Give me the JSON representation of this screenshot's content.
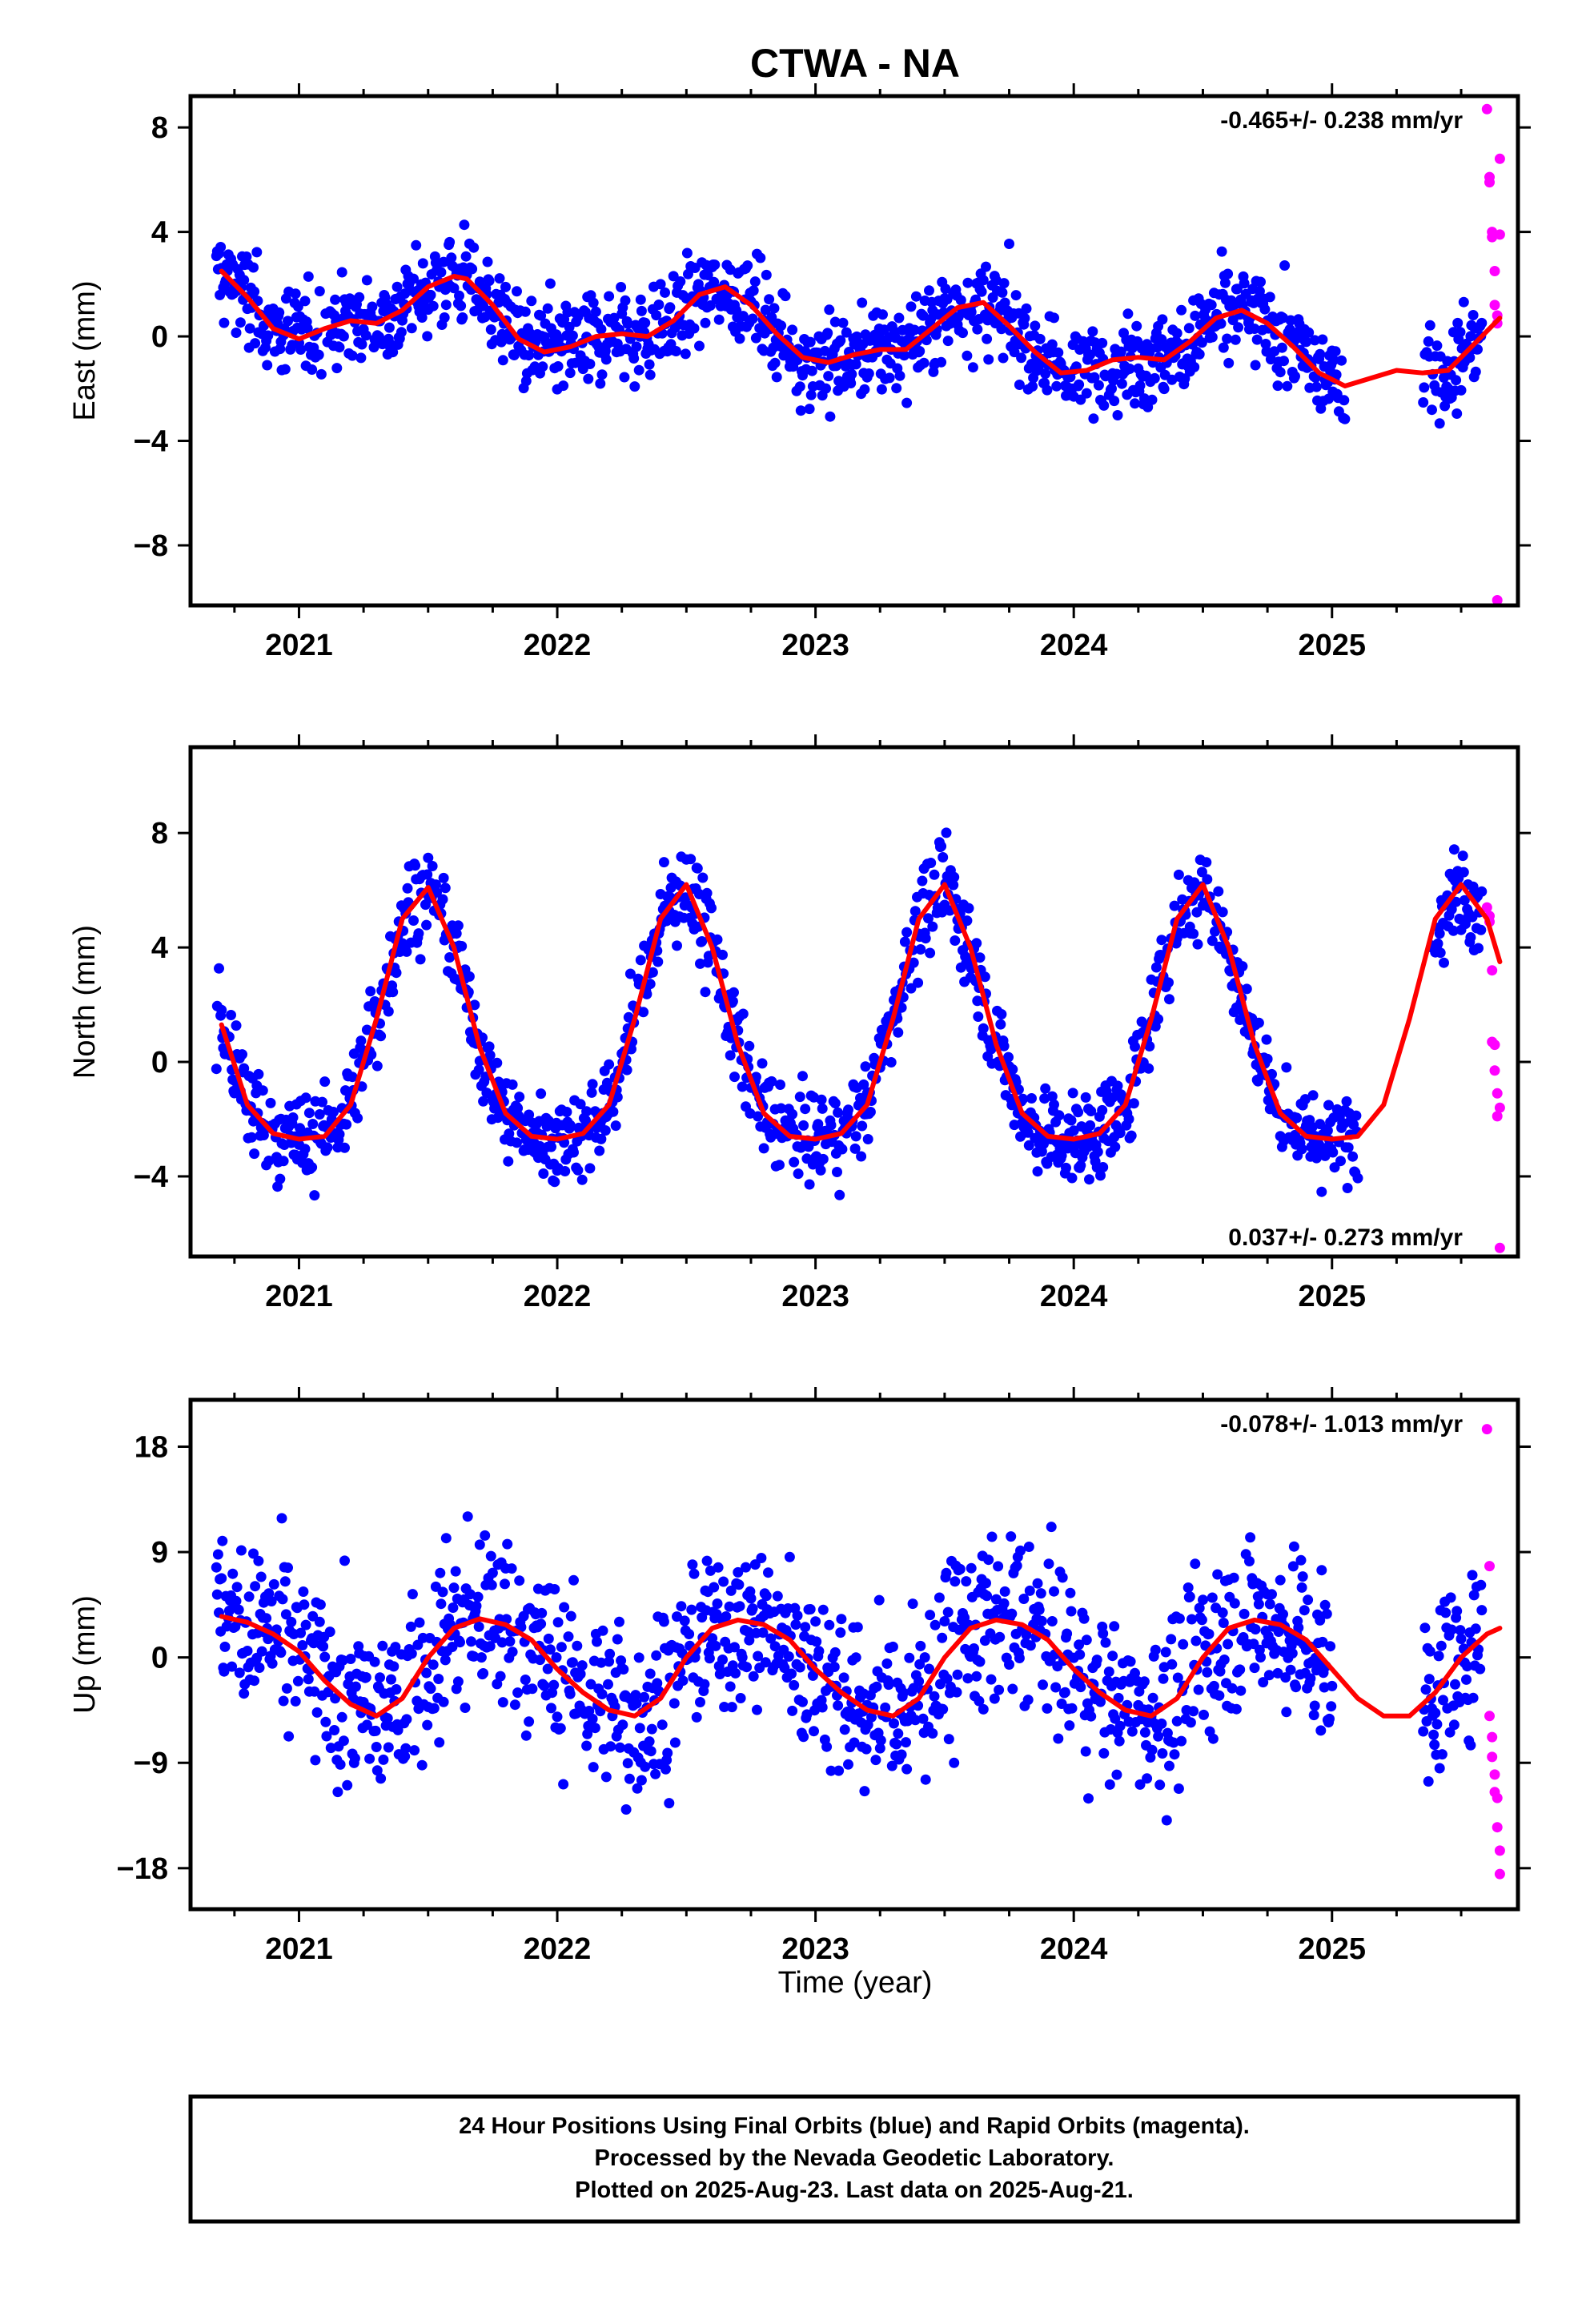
{
  "chart_data": {
    "type": "scatter",
    "title": "CTWA - NA",
    "xlabel": "Time (year)",
    "xlim": [
      2020.58,
      2025.72
    ],
    "x_ticks": [
      "2021",
      "2022",
      "2023",
      "2024",
      "2025"
    ],
    "grid": false,
    "colors": {
      "final": "#0000ff",
      "rapid": "#ff00ff",
      "model": "#ff0000",
      "frame": "#000000"
    },
    "panels": [
      {
        "ylabel": "East (mm)",
        "ylim": [
          -10.3,
          9.2
        ],
        "y_ticks": [
          "8",
          "4",
          "0",
          "−4",
          "−8"
        ],
        "rate": "-0.465+/- 0.238 mm/yr",
        "rate_position": "top-right",
        "model_curve": {
          "x": [
            2020.7,
            2020.8,
            2020.9,
            2021.0,
            2021.1,
            2021.2,
            2021.3,
            2021.4,
            2021.5,
            2021.6,
            2021.65,
            2021.75,
            2021.85,
            2021.95,
            2022.05,
            2022.15,
            2022.25,
            2022.35,
            2022.45,
            2022.55,
            2022.65,
            2022.75,
            2022.85,
            2022.95,
            2023.05,
            2023.15,
            2023.25,
            2023.35,
            2023.45,
            2023.55,
            2023.65,
            2023.75,
            2023.85,
            2023.95,
            2024.05,
            2024.15,
            2024.25,
            2024.35,
            2024.45,
            2024.55,
            2024.65,
            2024.75,
            2024.85,
            2024.95,
            2025.05,
            2025.15,
            2025.25,
            2025.35,
            2025.45,
            2025.55,
            2025.65
          ],
          "y": [
            2.5,
            1.5,
            0.3,
            -0.1,
            0.3,
            0.6,
            0.5,
            1.0,
            1.9,
            2.3,
            2.2,
            1.2,
            -0.1,
            -0.6,
            -0.4,
            0.0,
            0.1,
            0.0,
            0.6,
            1.6,
            1.9,
            1.2,
            0.1,
            -0.8,
            -1.0,
            -0.7,
            -0.5,
            -0.5,
            0.3,
            1.1,
            1.3,
            0.4,
            -0.6,
            -1.4,
            -1.3,
            -0.9,
            -0.8,
            -0.9,
            -0.2,
            0.7,
            1.0,
            0.5,
            -0.4,
            -1.4,
            -1.9,
            -1.6,
            -1.3,
            -1.4,
            -1.3,
            -0.3,
            0.7
          ]
        },
        "series_params": {
          "A": 1.3,
          "P": 0.62,
          "off": 1.1,
          "trend": -0.465,
          "noise": 1.05,
          "gap_start": 2025.05,
          "gap_end": 2025.35,
          "rapid_x": [
            2025.6,
            2025.61,
            2025.61,
            2025.62,
            2025.62,
            2025.63,
            2025.63,
            2025.64,
            2025.64,
            2025.64,
            2025.65,
            2025.65
          ],
          "rapid_y": [
            8.7,
            5.9,
            6.1,
            4.0,
            3.8,
            2.5,
            1.2,
            0.8,
            0.5,
            -10.1,
            6.8,
            3.9
          ]
        }
      },
      {
        "ylabel": "North (mm)",
        "ylim": [
          -6.8,
          11.0
        ],
        "y_ticks": [
          "8",
          "4",
          "0",
          "−4"
        ],
        "rate": "0.037+/- 0.273 mm/yr",
        "rate_position": "bottom-right",
        "model_curve": {
          "x": [
            2020.7,
            2020.8,
            2020.9,
            2021.0,
            2021.1,
            2021.2,
            2021.3,
            2021.4,
            2021.5,
            2021.6,
            2021.7,
            2021.8,
            2021.9,
            2022.0,
            2022.1,
            2022.2,
            2022.3,
            2022.4,
            2022.5,
            2022.6,
            2022.7,
            2022.8,
            2022.9,
            2023.0,
            2023.1,
            2023.2,
            2023.3,
            2023.4,
            2023.5,
            2023.6,
            2023.7,
            2023.8,
            2023.9,
            2024.0,
            2024.1,
            2024.2,
            2024.3,
            2024.4,
            2024.5,
            2024.6,
            2024.7,
            2024.8,
            2024.9,
            2025.0,
            2025.1,
            2025.2,
            2025.3,
            2025.4,
            2025.5,
            2025.6,
            2025.65
          ],
          "y": [
            1.3,
            -1.5,
            -2.5,
            -2.7,
            -2.6,
            -1.5,
            1.5,
            5.0,
            6.1,
            4.0,
            0.5,
            -1.8,
            -2.6,
            -2.7,
            -2.5,
            -1.5,
            1.5,
            5.0,
            6.2,
            4.0,
            0.6,
            -1.8,
            -2.6,
            -2.7,
            -2.5,
            -1.5,
            1.5,
            5.0,
            6.2,
            4.0,
            0.6,
            -1.8,
            -2.6,
            -2.7,
            -2.5,
            -1.5,
            1.5,
            5.0,
            6.2,
            4.0,
            0.6,
            -1.8,
            -2.6,
            -2.7,
            -2.6,
            -1.5,
            1.5,
            5.0,
            6.2,
            5.0,
            3.5
          ]
        },
        "series_params": {
          "A": 4.4,
          "P": 0.13,
          "off": 1.8,
          "trend": 0.037,
          "noise": 0.95,
          "gap_start": 2025.1,
          "gap_end": 2025.38,
          "rapid_x": [
            2025.6,
            2025.61,
            2025.61,
            2025.62,
            2025.62,
            2025.63,
            2025.63,
            2025.64,
            2025.64,
            2025.65,
            2025.65
          ],
          "rapid_y": [
            5.4,
            5.1,
            4.9,
            3.2,
            0.7,
            0.6,
            -0.3,
            -1.1,
            -1.9,
            -1.6,
            -6.5
          ]
        }
      },
      {
        "ylabel": "Up (mm)",
        "ylim": [
          -21.5,
          22.0
        ],
        "y_ticks": [
          "18",
          "9",
          "0",
          "−9",
          "−18"
        ],
        "rate": "-0.078+/- 1.013 mm/yr",
        "rate_position": "top-right",
        "model_curve": {
          "x": [
            2020.7,
            2020.8,
            2020.9,
            2021.0,
            2021.1,
            2021.2,
            2021.3,
            2021.4,
            2021.5,
            2021.6,
            2021.7,
            2021.8,
            2021.9,
            2022.0,
            2022.1,
            2022.2,
            2022.3,
            2022.4,
            2022.5,
            2022.6,
            2022.7,
            2022.8,
            2022.9,
            2023.0,
            2023.1,
            2023.2,
            2023.3,
            2023.4,
            2023.5,
            2023.6,
            2023.7,
            2023.8,
            2023.9,
            2024.0,
            2024.1,
            2024.2,
            2024.3,
            2024.4,
            2024.5,
            2024.6,
            2024.7,
            2024.8,
            2024.9,
            2025.0,
            2025.1,
            2025.2,
            2025.3,
            2025.4,
            2025.5,
            2025.6,
            2025.65
          ],
          "y": [
            3.5,
            3.0,
            2.0,
            0.5,
            -2.0,
            -4.0,
            -5.0,
            -3.5,
            0.0,
            2.5,
            3.3,
            2.8,
            1.5,
            -1.0,
            -3.0,
            -4.5,
            -5.0,
            -3.5,
            0.0,
            2.5,
            3.2,
            2.8,
            1.5,
            -1.0,
            -3.0,
            -4.5,
            -5.0,
            -3.5,
            0.0,
            2.5,
            3.2,
            2.8,
            1.5,
            -1.0,
            -3.0,
            -4.5,
            -5.0,
            -3.5,
            0.0,
            2.5,
            3.2,
            2.8,
            1.5,
            -1.0,
            -3.5,
            -5.0,
            -5.0,
            -3.0,
            0.0,
            2.0,
            2.5
          ]
        },
        "series_params": {
          "A": 4.3,
          "P": 0.92,
          "off": 0.0,
          "trend": -0.078,
          "noise": 4.4,
          "gap_start": 2025.0,
          "gap_end": 2025.35,
          "rapid_x": [
            2025.6,
            2025.61,
            2025.61,
            2025.62,
            2025.62,
            2025.63,
            2025.63,
            2025.64,
            2025.64,
            2025.65,
            2025.65
          ],
          "rapid_y": [
            19.5,
            7.8,
            -5.0,
            -6.8,
            -8.5,
            -10.0,
            -11.5,
            -12.0,
            -14.5,
            -16.5,
            -18.5
          ]
        }
      }
    ]
  },
  "caption": {
    "line1": "24 Hour Positions Using Final Orbits (blue) and Rapid Orbits (magenta).",
    "line2": "Processed by the Nevada Geodetic Laboratory.",
    "line3": "Plotted on 2025-Aug-23. Last data on 2025-Aug-21."
  }
}
